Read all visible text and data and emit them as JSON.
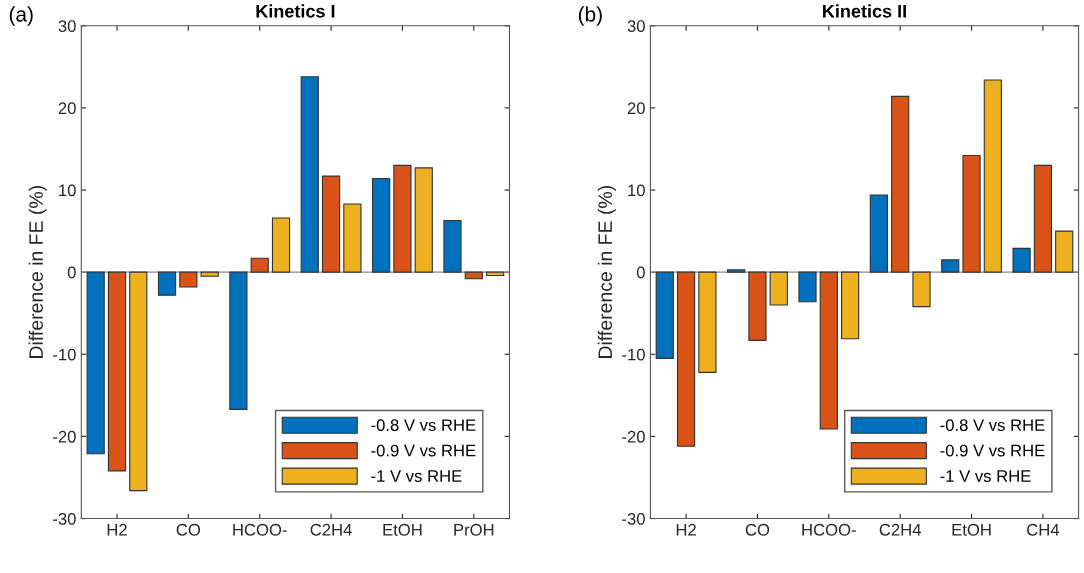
{
  "chart_data": [
    {
      "type": "bar",
      "title": "Kinetics I",
      "ylabel": "Difference in FE (%)",
      "annotations": [
        "(a)"
      ],
      "categories": [
        "H2",
        "CO",
        "HCOO-",
        "C2H4",
        "EtOH",
        "PrOH"
      ],
      "series": [
        {
          "name": "-0.8 V vs RHE",
          "color": "#0072bd",
          "values": [
            -22.1,
            -2.8,
            -16.7,
            23.8,
            11.4,
            6.3
          ]
        },
        {
          "name": "-0.9 V vs RHE",
          "color": "#d95319",
          "values": [
            -24.2,
            -1.8,
            1.7,
            11.7,
            13.0,
            -0.8
          ]
        },
        {
          "name": "-1 V vs RHE",
          "color": "#edb120",
          "values": [
            -26.6,
            -0.5,
            6.6,
            8.3,
            12.7,
            -0.4
          ]
        }
      ],
      "ylim": [
        -30,
        30
      ],
      "yticks": [
        -30,
        -20,
        -10,
        0,
        10,
        20,
        30
      ],
      "legend": "bottom right"
    },
    {
      "type": "bar",
      "title": "Kinetics II",
      "ylabel": "Difference in FE (%)",
      "annotations": [
        "(b)"
      ],
      "categories": [
        "H2",
        "CO",
        "HCOO-",
        "C2H4",
        "EtOH",
        "CH4"
      ],
      "series": [
        {
          "name": "-0.8 V vs RHE",
          "color": "#0072bd",
          "values": [
            -10.5,
            0.3,
            -3.6,
            9.4,
            1.5,
            2.9
          ]
        },
        {
          "name": "-0.9 V vs RHE",
          "color": "#d95319",
          "values": [
            -21.2,
            -8.3,
            -19.1,
            21.4,
            14.2,
            13.0
          ]
        },
        {
          "name": "-1 V vs RHE",
          "color": "#edb120",
          "values": [
            -12.2,
            -4.0,
            -8.1,
            -4.2,
            23.4,
            5.0
          ]
        }
      ],
      "ylim": [
        -30,
        30
      ],
      "yticks": [
        -30,
        -20,
        -10,
        0,
        10,
        20,
        30
      ],
      "legend": "bottom right"
    }
  ]
}
